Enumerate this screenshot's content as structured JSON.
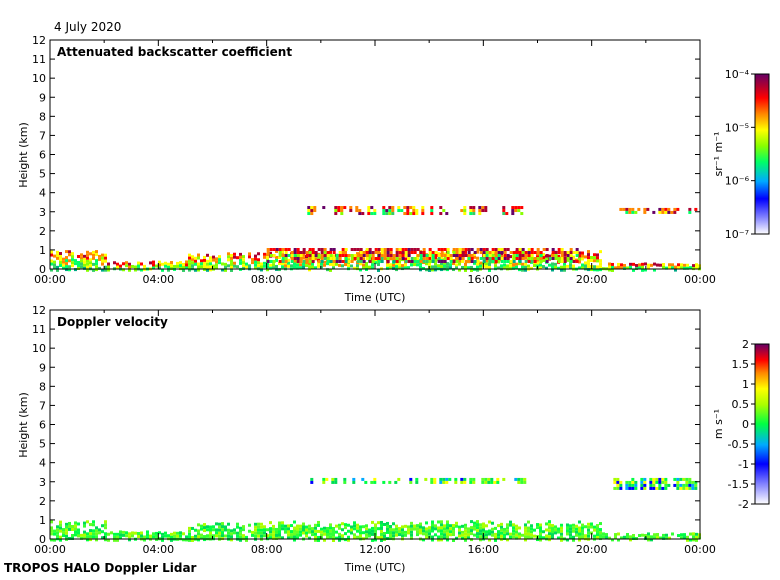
{
  "date_label": "4 July 2020",
  "footer": "TROPOS HALO Doppler Lidar",
  "chart_data": [
    {
      "type": "heatmap",
      "title": "Attenuated backscatter coefficient",
      "xlabel": "Time (UTC)",
      "ylabel": "Height (km)",
      "xlim": [
        0,
        24
      ],
      "ylim": [
        0,
        12
      ],
      "x_ticks": [
        "00:00",
        "04:00",
        "08:00",
        "12:00",
        "16:00",
        "20:00",
        "00:00"
      ],
      "y_ticks": [
        0,
        1,
        2,
        3,
        4,
        5,
        6,
        7,
        8,
        9,
        10,
        11,
        12
      ],
      "colorbar": {
        "scale": "log",
        "range": [
          1e-07,
          0.0001
        ],
        "unit": "sr⁻¹ m⁻¹",
        "ticks": [
          "10⁻⁷",
          "10⁻⁶",
          "10⁻⁵",
          "10⁻⁴"
        ]
      },
      "features": [
        {
          "name": "boundary layer aerosol",
          "t_start": 0,
          "t_end": 24,
          "height_km": [
            0,
            1.2
          ]
        },
        {
          "name": "cloud layer 1",
          "t_start": 9.5,
          "t_end": 17.5,
          "height_km": [
            2.9,
            3.3
          ]
        },
        {
          "name": "cloud layer 2",
          "t_start": 20.8,
          "t_end": 24,
          "height_km": [
            2.9,
            3.2
          ]
        },
        {
          "name": "cloud base layer",
          "t_start": 8,
          "t_end": 19.5,
          "height_km": [
            0.4,
            1.1
          ]
        }
      ]
    },
    {
      "type": "heatmap",
      "title": "Doppler velocity",
      "xlabel": "Time (UTC)",
      "ylabel": "Height (km)",
      "xlim": [
        0,
        24
      ],
      "ylim": [
        0,
        12
      ],
      "x_ticks": [
        "00:00",
        "04:00",
        "08:00",
        "12:00",
        "16:00",
        "20:00",
        "00:00"
      ],
      "y_ticks": [
        0,
        1,
        2,
        3,
        4,
        5,
        6,
        7,
        8,
        9,
        10,
        11,
        12
      ],
      "colorbar": {
        "scale": "linear",
        "range": [
          -2,
          2
        ],
        "unit": "m s⁻¹",
        "ticks": [
          "2",
          "1.5",
          "1",
          "0.5",
          "0",
          "-0.5",
          "-1",
          "-1.5",
          "-2"
        ]
      },
      "features": [
        {
          "name": "boundary layer velocity",
          "t_start": 0,
          "t_end": 24,
          "height_km": [
            0,
            1.1
          ]
        },
        {
          "name": "cloud layer 1",
          "t_start": 9.5,
          "t_end": 17.5,
          "height_km": [
            2.9,
            3.2
          ]
        },
        {
          "name": "cloud layer 2",
          "t_start": 20.8,
          "t_end": 24,
          "height_km": [
            2.6,
            3.2
          ]
        }
      ]
    }
  ]
}
